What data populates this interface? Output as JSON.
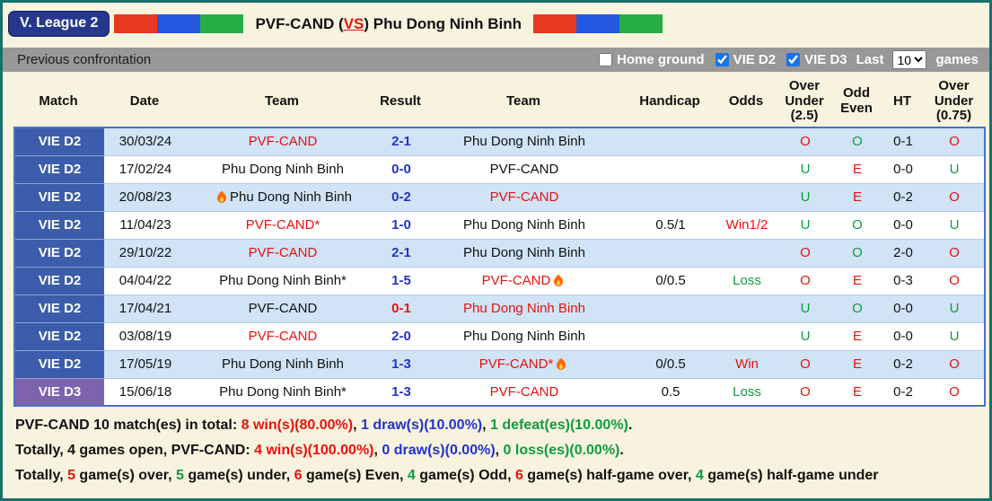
{
  "page": {
    "league_badge": "V. League 2",
    "title": {
      "team1": "PVF-CAND",
      "vs_open": "(",
      "vs": "VS",
      "vs_close": ")",
      "team2": "Phu Dong Ninh Binh"
    }
  },
  "flag_colors": [
    "#e8391f",
    "#2257e0",
    "#27ad46"
  ],
  "filter_bar": {
    "title": "Previous confrontation",
    "checkboxes": [
      {
        "label": "Home ground",
        "checked": false
      },
      {
        "label": "VIE D2",
        "checked": true
      },
      {
        "label": "VIE D3",
        "checked": true
      }
    ],
    "last_label": "Last",
    "select_value": "10",
    "games_label": "games"
  },
  "colors": {
    "red": "#e8120e",
    "green": "#0f9c40",
    "blue": "#2232cc",
    "black": "#111111",
    "match_d2_bg": "#3b5dab",
    "match_d3_bg": "#7d63ae"
  },
  "table": {
    "headers": [
      "Match",
      "Date",
      "Team",
      "Result",
      "Team",
      "Handicap",
      "Odds",
      "Over Under (2.5)",
      "Odd Even",
      "HT",
      "Over Under (0.75)"
    ],
    "rows": [
      {
        "match": "VIE D2",
        "date": "30/03/24",
        "home": {
          "name": "PVF-CAND",
          "color": "red",
          "star": false,
          "fire": null
        },
        "result": "2-1",
        "result_color": "blue",
        "away": {
          "name": "Phu Dong Ninh Binh",
          "color": "black",
          "star": false,
          "fire": null
        },
        "handicap": "",
        "odds": "",
        "odds_color": "black",
        "ou25": "O",
        "ou25_color": "red",
        "oe": "O",
        "oe_color": "green",
        "ht": "0-1",
        "ou075": "O",
        "ou075_color": "red"
      },
      {
        "match": "VIE D2",
        "date": "17/02/24",
        "home": {
          "name": "Phu Dong Ninh Binh",
          "color": "black",
          "star": false,
          "fire": null
        },
        "result": "0-0",
        "result_color": "blue",
        "away": {
          "name": "PVF-CAND",
          "color": "black",
          "star": false,
          "fire": null
        },
        "handicap": "",
        "odds": "",
        "odds_color": "black",
        "ou25": "U",
        "ou25_color": "green",
        "oe": "E",
        "oe_color": "red",
        "ht": "0-0",
        "ou075": "U",
        "ou075_color": "green"
      },
      {
        "match": "VIE D2",
        "date": "20/08/23",
        "home": {
          "name": "Phu Dong Ninh Binh",
          "color": "black",
          "star": false,
          "fire": "before"
        },
        "result": "0-2",
        "result_color": "blue",
        "away": {
          "name": "PVF-CAND",
          "color": "red",
          "star": false,
          "fire": null
        },
        "handicap": "",
        "odds": "",
        "odds_color": "black",
        "ou25": "U",
        "ou25_color": "green",
        "oe": "E",
        "oe_color": "red",
        "ht": "0-2",
        "ou075": "O",
        "ou075_color": "red"
      },
      {
        "match": "VIE D2",
        "date": "11/04/23",
        "home": {
          "name": "PVF-CAND",
          "color": "red",
          "star": true,
          "fire": null
        },
        "result": "1-0",
        "result_color": "blue",
        "away": {
          "name": "Phu Dong Ninh Binh",
          "color": "black",
          "star": false,
          "fire": null
        },
        "handicap": "0.5/1",
        "odds": "Win1/2",
        "odds_color": "red",
        "ou25": "U",
        "ou25_color": "green",
        "oe": "O",
        "oe_color": "green",
        "ht": "0-0",
        "ou075": "U",
        "ou075_color": "green"
      },
      {
        "match": "VIE D2",
        "date": "29/10/22",
        "home": {
          "name": "PVF-CAND",
          "color": "red",
          "star": false,
          "fire": null
        },
        "result": "2-1",
        "result_color": "blue",
        "away": {
          "name": "Phu Dong Ninh Binh",
          "color": "black",
          "star": false,
          "fire": null
        },
        "handicap": "",
        "odds": "",
        "odds_color": "black",
        "ou25": "O",
        "ou25_color": "red",
        "oe": "O",
        "oe_color": "green",
        "ht": "2-0",
        "ou075": "O",
        "ou075_color": "red"
      },
      {
        "match": "VIE D2",
        "date": "04/04/22",
        "home": {
          "name": "Phu Dong Ninh Binh",
          "color": "black",
          "star": true,
          "fire": null
        },
        "result": "1-5",
        "result_color": "blue",
        "away": {
          "name": "PVF-CAND",
          "color": "red",
          "star": false,
          "fire": "after"
        },
        "handicap": "0/0.5",
        "odds": "Loss",
        "odds_color": "green",
        "ou25": "O",
        "ou25_color": "red",
        "oe": "E",
        "oe_color": "red",
        "ht": "0-3",
        "ou075": "O",
        "ou075_color": "red"
      },
      {
        "match": "VIE D2",
        "date": "17/04/21",
        "home": {
          "name": "PVF-CAND",
          "color": "black",
          "star": false,
          "fire": null
        },
        "result": "0-1",
        "result_color": "red",
        "away": {
          "name": "Phu Dong Ninh Binh",
          "color": "red",
          "star": false,
          "fire": null
        },
        "handicap": "",
        "odds": "",
        "odds_color": "black",
        "ou25": "U",
        "ou25_color": "green",
        "oe": "O",
        "oe_color": "green",
        "ht": "0-0",
        "ou075": "U",
        "ou075_color": "green"
      },
      {
        "match": "VIE D2",
        "date": "03/08/19",
        "home": {
          "name": "PVF-CAND",
          "color": "red",
          "star": false,
          "fire": null
        },
        "result": "2-0",
        "result_color": "blue",
        "away": {
          "name": "Phu Dong Ninh Binh",
          "color": "black",
          "star": false,
          "fire": null
        },
        "handicap": "",
        "odds": "",
        "odds_color": "black",
        "ou25": "U",
        "ou25_color": "green",
        "oe": "E",
        "oe_color": "red",
        "ht": "0-0",
        "ou075": "U",
        "ou075_color": "green"
      },
      {
        "match": "VIE D2",
        "date": "17/05/19",
        "home": {
          "name": "Phu Dong Ninh Binh",
          "color": "black",
          "star": false,
          "fire": null
        },
        "result": "1-3",
        "result_color": "blue",
        "away": {
          "name": "PVF-CAND",
          "color": "red",
          "star": true,
          "fire": "after"
        },
        "handicap": "0/0.5",
        "odds": "Win",
        "odds_color": "red",
        "ou25": "O",
        "ou25_color": "red",
        "oe": "E",
        "oe_color": "red",
        "ht": "0-2",
        "ou075": "O",
        "ou075_color": "red"
      },
      {
        "match": "VIE D3",
        "date": "15/06/18",
        "home": {
          "name": "Phu Dong Ninh Binh",
          "color": "black",
          "star": true,
          "fire": null
        },
        "result": "1-3",
        "result_color": "blue",
        "away": {
          "name": "PVF-CAND",
          "color": "red",
          "star": false,
          "fire": null
        },
        "handicap": "0.5",
        "odds": "Loss",
        "odds_color": "green",
        "ou25": "O",
        "ou25_color": "red",
        "oe": "E",
        "oe_color": "red",
        "ht": "0-2",
        "ou075": "O",
        "ou075_color": "red"
      }
    ]
  },
  "summary": {
    "lines": [
      [
        {
          "t": "PVF-CAND 10 match(es) in total: ",
          "c": "black"
        },
        {
          "t": "8 win(s)(80.00%)",
          "c": "red"
        },
        {
          "t": ", ",
          "c": "black"
        },
        {
          "t": "1 draw(s)(10.00%)",
          "c": "blue"
        },
        {
          "t": ", ",
          "c": "black"
        },
        {
          "t": "1 defeat(es)(10.00%)",
          "c": "green"
        },
        {
          "t": ".",
          "c": "black"
        }
      ],
      [
        {
          "t": "Totally, 4 games open, PVF-CAND: ",
          "c": "black"
        },
        {
          "t": "4 win(s)(100.00%)",
          "c": "red"
        },
        {
          "t": ", ",
          "c": "black"
        },
        {
          "t": "0 draw(s)(0.00%)",
          "c": "blue"
        },
        {
          "t": ", ",
          "c": "black"
        },
        {
          "t": "0 loss(es)(0.00%)",
          "c": "green"
        },
        {
          "t": ".",
          "c": "black"
        }
      ],
      [
        {
          "t": "Totally, ",
          "c": "black"
        },
        {
          "t": "5",
          "c": "red"
        },
        {
          "t": " game(s) over, ",
          "c": "black"
        },
        {
          "t": "5",
          "c": "green"
        },
        {
          "t": " game(s) under, ",
          "c": "black"
        },
        {
          "t": "6",
          "c": "red"
        },
        {
          "t": " game(s) Even, ",
          "c": "black"
        },
        {
          "t": "4",
          "c": "green"
        },
        {
          "t": " game(s) Odd, ",
          "c": "black"
        },
        {
          "t": "6",
          "c": "red"
        },
        {
          "t": " game(s) half-game over, ",
          "c": "black"
        },
        {
          "t": "4",
          "c": "green"
        },
        {
          "t": " game(s) half-game under",
          "c": "black"
        }
      ]
    ]
  }
}
